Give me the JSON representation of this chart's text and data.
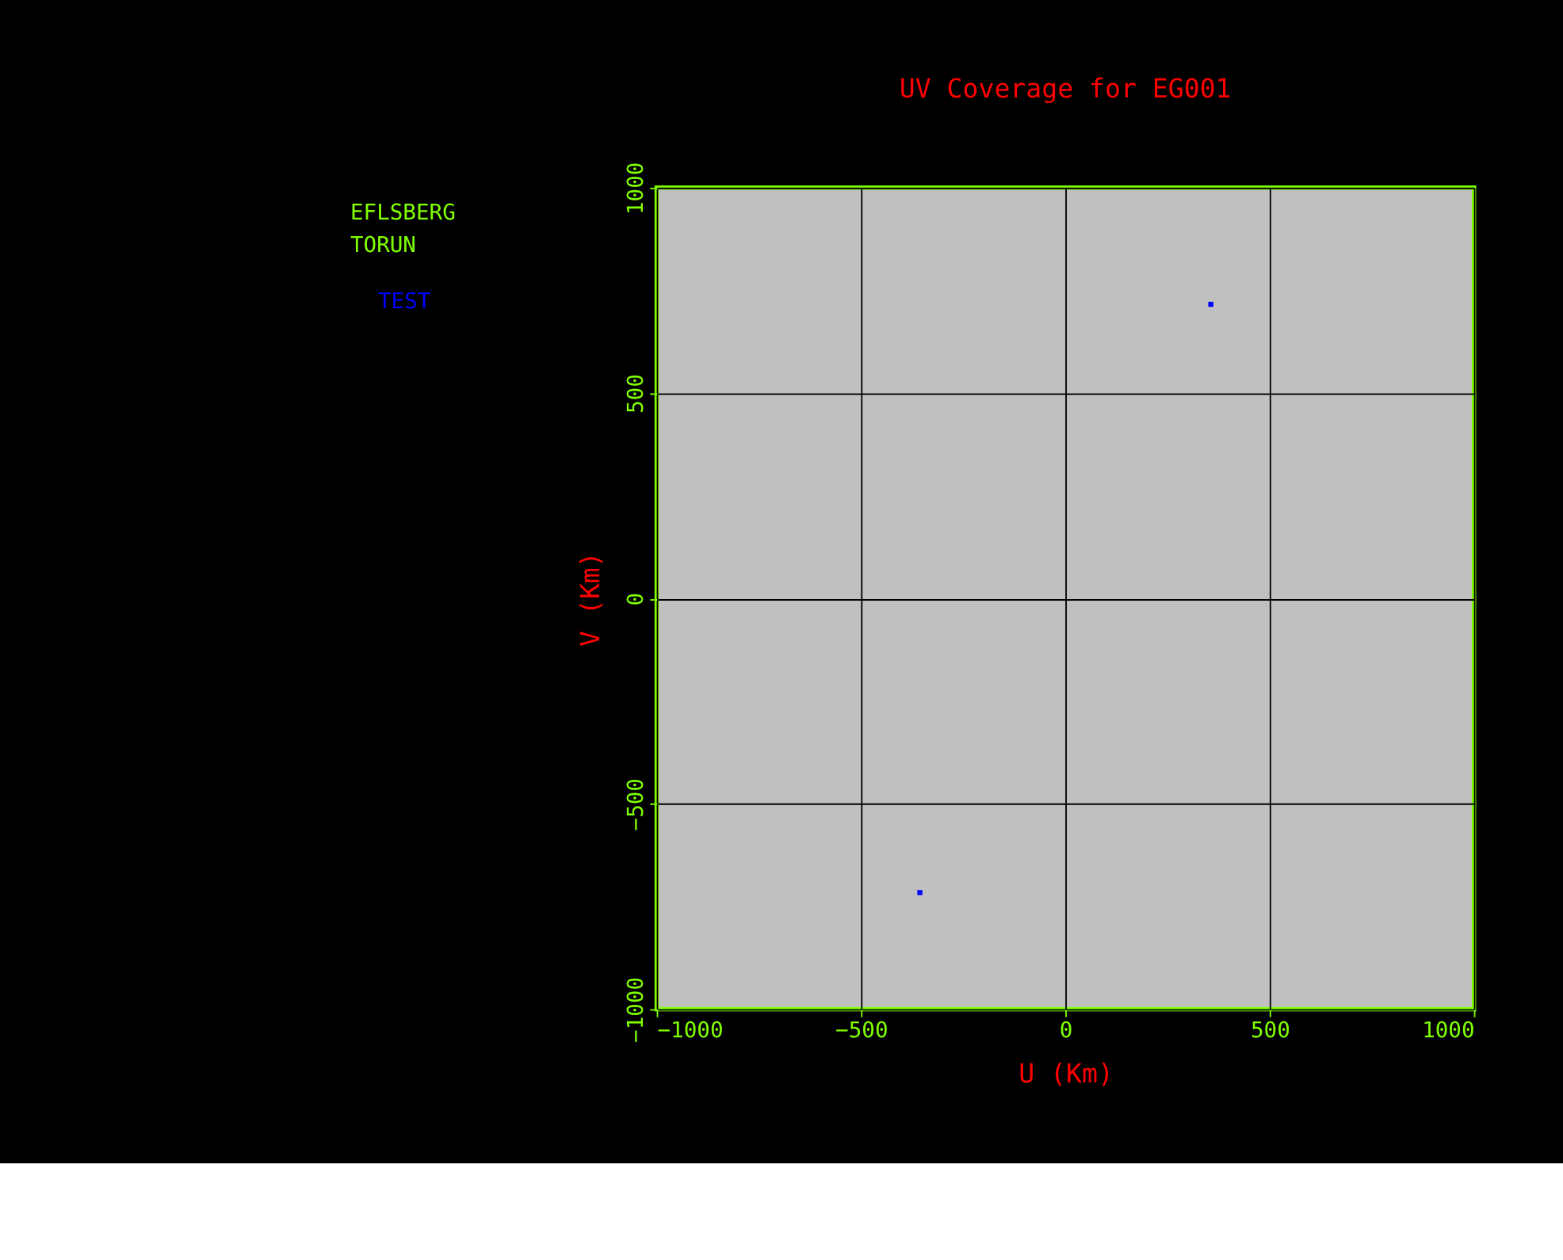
{
  "chart_data": {
    "type": "scatter",
    "title": "UV Coverage for EG001",
    "xlabel": "U (Km)",
    "ylabel": "V (Km)",
    "x": [
      356,
      -356
    ],
    "series": [
      {
        "name": "TEST",
        "color": "#0000ff",
        "values": [
          716,
          -716
        ]
      }
    ],
    "xlim": [
      -1000,
      1000
    ],
    "ylim": [
      -1000,
      1000
    ],
    "xticks": [
      -1000,
      -500,
      0,
      500,
      1000
    ],
    "yticks": [
      -1000,
      -500,
      0,
      500,
      1000
    ],
    "grid": true,
    "legend": "top left",
    "marker": "square",
    "annotations": [
      "EFLSBERG",
      "TORUN"
    ]
  }
}
